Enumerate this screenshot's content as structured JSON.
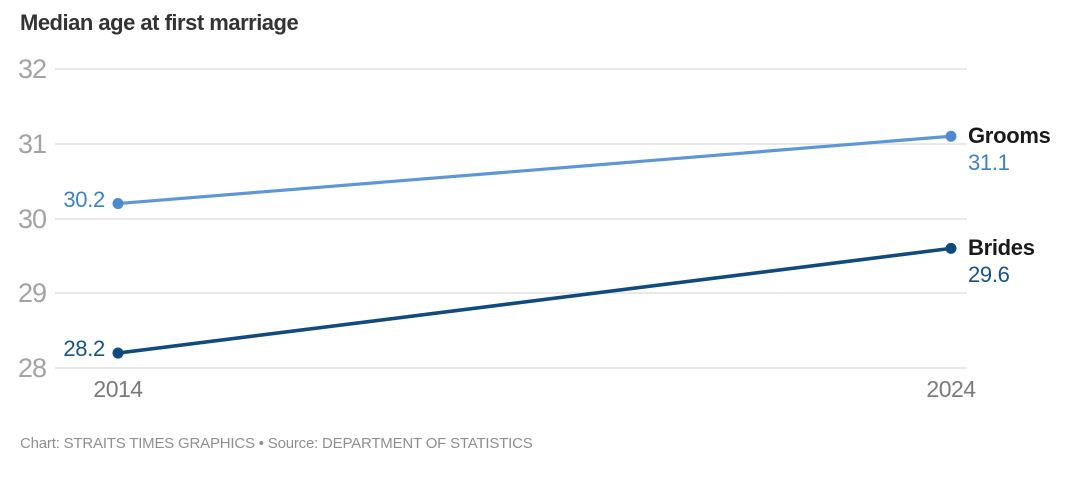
{
  "title": "Median age at first marriage",
  "footer": "Chart: STRAITS TIMES GRAPHICS • Source: DEPARTMENT OF STATISTICS",
  "colors": {
    "background": "#ffffff",
    "title_text": "#333333",
    "gridline": "#e9e9e9",
    "y_tick_text": "#a3a3a3",
    "x_tick_text": "#7a7a7a",
    "series_name_text": "#1a1a1a",
    "footer_text": "#8f8f8f"
  },
  "chart_data": {
    "type": "line",
    "title": "Median age at first marriage",
    "x": [
      2014,
      2024
    ],
    "x_tick_labels": [
      "2014",
      "2024"
    ],
    "yticks": [
      28,
      29,
      30,
      31,
      32
    ],
    "ytick_labels": [
      "28",
      "29",
      "30",
      "31",
      "32"
    ],
    "ylim": [
      28,
      32
    ],
    "grid": "horizontal",
    "legend_position": "end-of-line-labels",
    "series": [
      {
        "name": "Grooms",
        "values": [
          30.2,
          31.1
        ],
        "value_labels": [
          "30.2",
          "31.1"
        ],
        "line_color": "#5e96d8",
        "dot_color": "#4c8bd2",
        "value_color": "#3b82ce"
      },
      {
        "name": "Brides",
        "values": [
          28.2,
          29.6
        ],
        "value_labels": [
          "28.2",
          "29.6"
        ],
        "line_color": "#0f4b7e",
        "dot_color": "#0f4b7e",
        "value_color": "#14538c"
      }
    ]
  }
}
